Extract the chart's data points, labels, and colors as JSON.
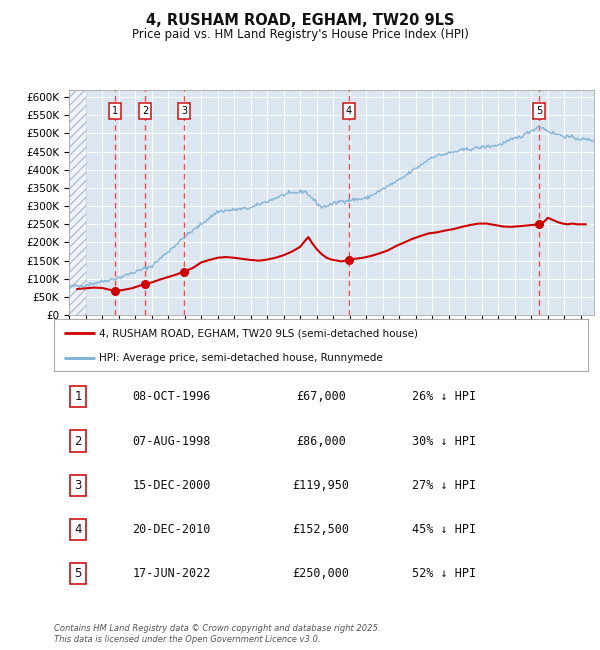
{
  "title": "4, RUSHAM ROAD, EGHAM, TW20 9LS",
  "subtitle": "Price paid vs. HM Land Registry's House Price Index (HPI)",
  "ylim": [
    0,
    620000
  ],
  "yticks": [
    0,
    50000,
    100000,
    150000,
    200000,
    250000,
    300000,
    350000,
    400000,
    450000,
    500000,
    550000,
    600000
  ],
  "xlim_start": 1994.0,
  "xlim_end": 2025.8,
  "background_color": "#ffffff",
  "plot_bg_color": "#dce6f1",
  "grid_color": "#ffffff",
  "transactions": [
    {
      "num": 1,
      "date_str": "08-OCT-1996",
      "year": 1996.77,
      "price": 67000,
      "pct": "26% ↓ HPI"
    },
    {
      "num": 2,
      "date_str": "07-AUG-1998",
      "year": 1998.6,
      "price": 86000,
      "pct": "30% ↓ HPI"
    },
    {
      "num": 3,
      "date_str": "15-DEC-2000",
      "year": 2000.96,
      "price": 119950,
      "pct": "27% ↓ HPI"
    },
    {
      "num": 4,
      "date_str": "20-DEC-2010",
      "year": 2010.96,
      "price": 152500,
      "pct": "45% ↓ HPI"
    },
    {
      "num": 5,
      "date_str": "17-JUN-2022",
      "year": 2022.46,
      "price": 250000,
      "pct": "52% ↓ HPI"
    }
  ],
  "tx_prices_display": [
    "£67,000",
    "£86,000",
    "£119,950",
    "£152,500",
    "£250,000"
  ],
  "red_line_color": "#cc0000",
  "blue_line_color": "#7bafd4",
  "dashed_line_color": "#ee3333",
  "footnote": "Contains HM Land Registry data © Crown copyright and database right 2025.\nThis data is licensed under the Open Government Licence v3.0.",
  "legend_label_red": "4, RUSHAM ROAD, EGHAM, TW20 9LS (semi-detached house)",
  "legend_label_blue": "HPI: Average price, semi-detached house, Runnymede"
}
